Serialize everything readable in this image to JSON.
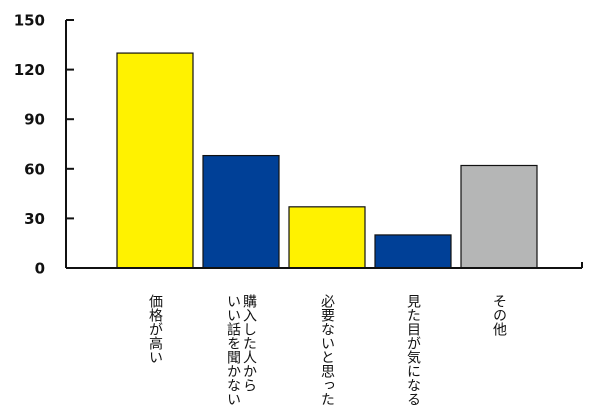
{
  "chart_data": {
    "type": "bar",
    "title": "",
    "xlabel": "",
    "ylabel": "",
    "categories": [
      [
        "価格が高い"
      ],
      [
        "購入した人から",
        "いい話を聞かない"
      ],
      [
        "必要ないと思った"
      ],
      [
        "見た目が気になる"
      ],
      [
        "その他"
      ]
    ],
    "values": [
      130,
      68,
      37,
      20,
      62
    ],
    "colors": [
      "#fff200",
      "#004097",
      "#fff200",
      "#004097",
      "#b5b6b6"
    ],
    "ylim": [
      0,
      150
    ],
    "yticks": [
      0,
      30,
      60,
      90,
      120,
      150
    ],
    "grid": false,
    "legend": "none"
  }
}
